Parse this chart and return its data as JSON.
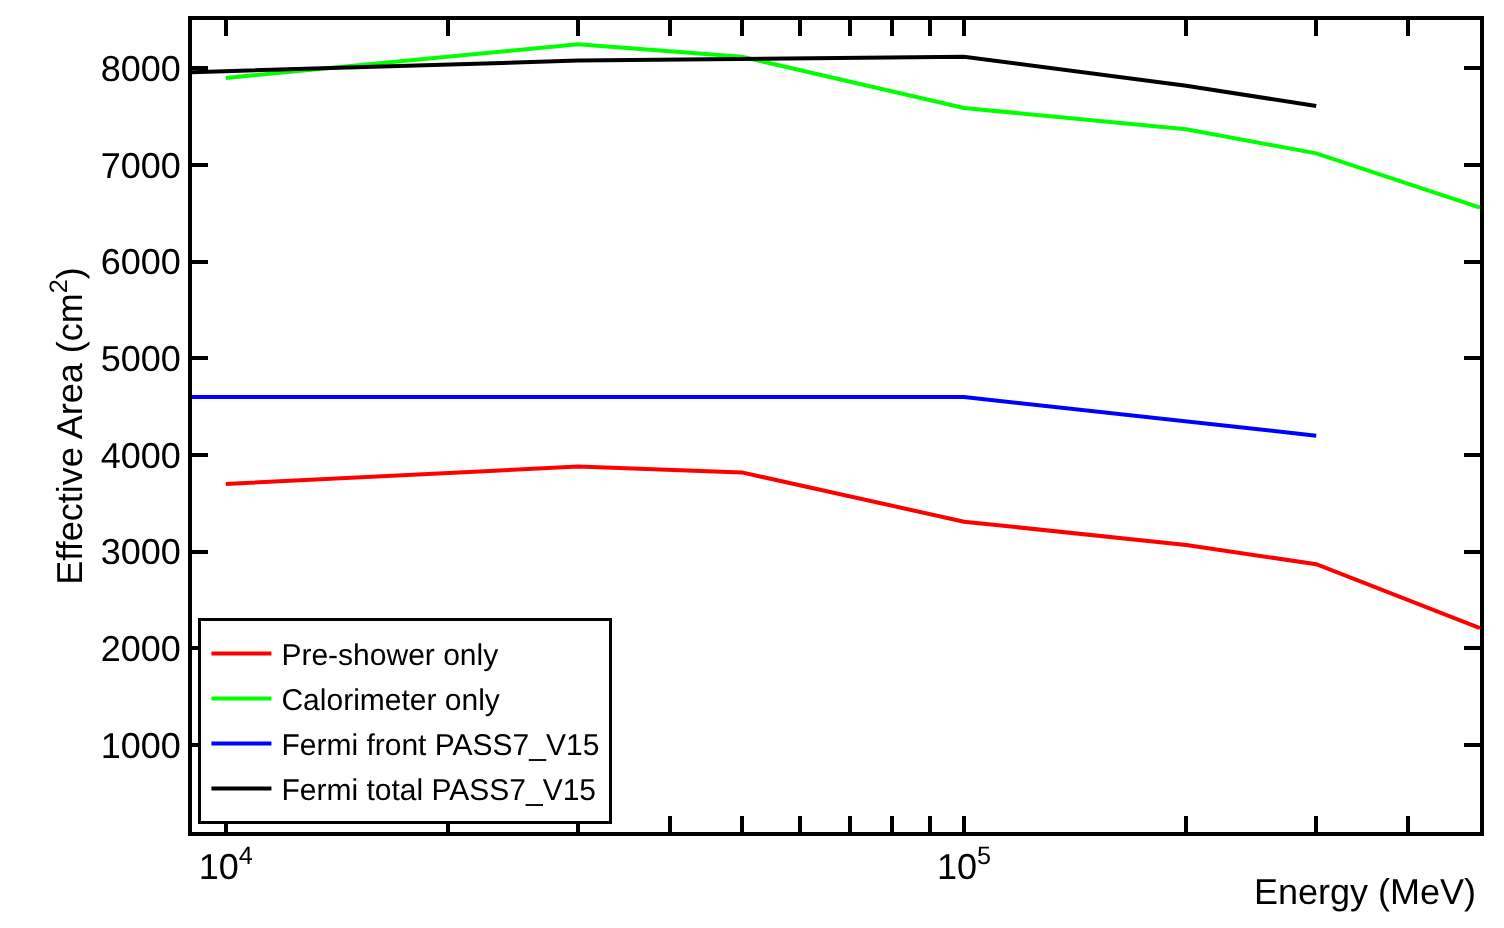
{
  "chart_data": {
    "type": "line",
    "xlabel": "Energy (MeV)",
    "ylabel": "Effective Area (cm$^{2}$)",
    "log": "x",
    "legend": "bottom left",
    "marker": "none",
    "line_style": "solid",
    "xlim": [
      9000,
      500000
    ],
    "xticks": [
      {
        "value": 10000,
        "label": "10$^{4}$"
      },
      {
        "value": 20000,
        "label": null
      },
      {
        "value": 30000,
        "label": null
      },
      {
        "value": 40000,
        "label": null
      },
      {
        "value": 50000,
        "label": null
      },
      {
        "value": 60000,
        "label": null
      },
      {
        "value": 70000,
        "label": null
      },
      {
        "value": 80000,
        "label": null
      },
      {
        "value": 90000,
        "label": null
      },
      {
        "value": 100000,
        "label": "10$^{5}$"
      },
      {
        "value": 200000,
        "label": null
      },
      {
        "value": 300000,
        "label": null
      },
      {
        "value": 400000,
        "label": null
      },
      {
        "value": 500000,
        "label": null
      }
    ],
    "ylim": [
      100,
      8500
    ],
    "yticks": [
      1000,
      2000,
      3000,
      4000,
      5000,
      6000,
      7000,
      8000
    ],
    "series": [
      {
        "name": "Pre-shower only",
        "color": "#ff0000",
        "x": [
          10000,
          30000,
          50000,
          100000,
          200000,
          300000,
          500000
        ],
        "values": [
          3700,
          3880,
          3820,
          3310,
          3070,
          2870,
          2210
        ]
      },
      {
        "name": "Calorimeter only",
        "color": "#00ff00",
        "x": [
          10000,
          30000,
          50000,
          100000,
          200000,
          300000,
          500000
        ],
        "values": [
          7900,
          8250,
          8120,
          7590,
          7370,
          7120,
          6560
        ]
      },
      {
        "name": "Fermi front PASS7_V15",
        "color": "#0000ff",
        "x": [
          9000,
          100000,
          300000
        ],
        "values": [
          4600,
          4600,
          4200
        ]
      },
      {
        "name": "Fermi total PASS7_V15",
        "color": "#000000",
        "x": [
          9000,
          30000,
          100000,
          200000,
          300000
        ],
        "values": [
          7960,
          8080,
          8120,
          7820,
          7610
        ]
      }
    ]
  }
}
